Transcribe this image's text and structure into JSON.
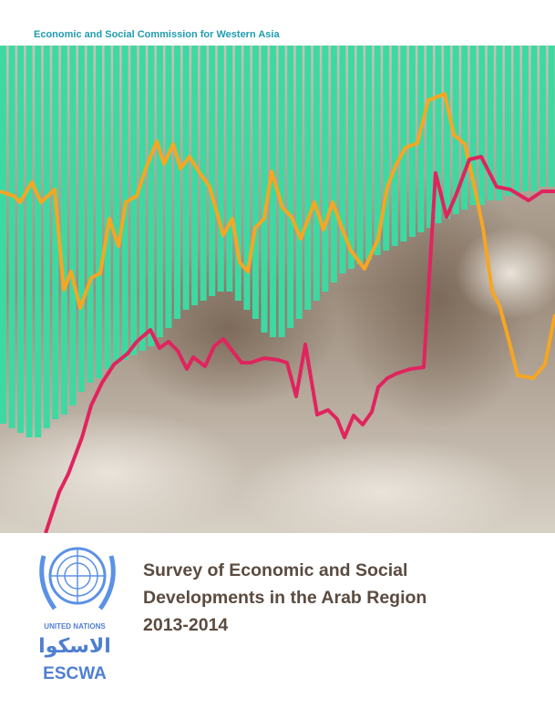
{
  "header": {
    "organization": "Economic and Social Commission for Western Asia"
  },
  "title": {
    "lines": [
      "Survey of Economic and Social",
      "Developments in the Arab Region",
      "2013-2014"
    ]
  },
  "logo": {
    "united_nations": "UNITED NATIONS",
    "arabic_name": "الاسكوا",
    "acronym": "ESCWA"
  }
}
